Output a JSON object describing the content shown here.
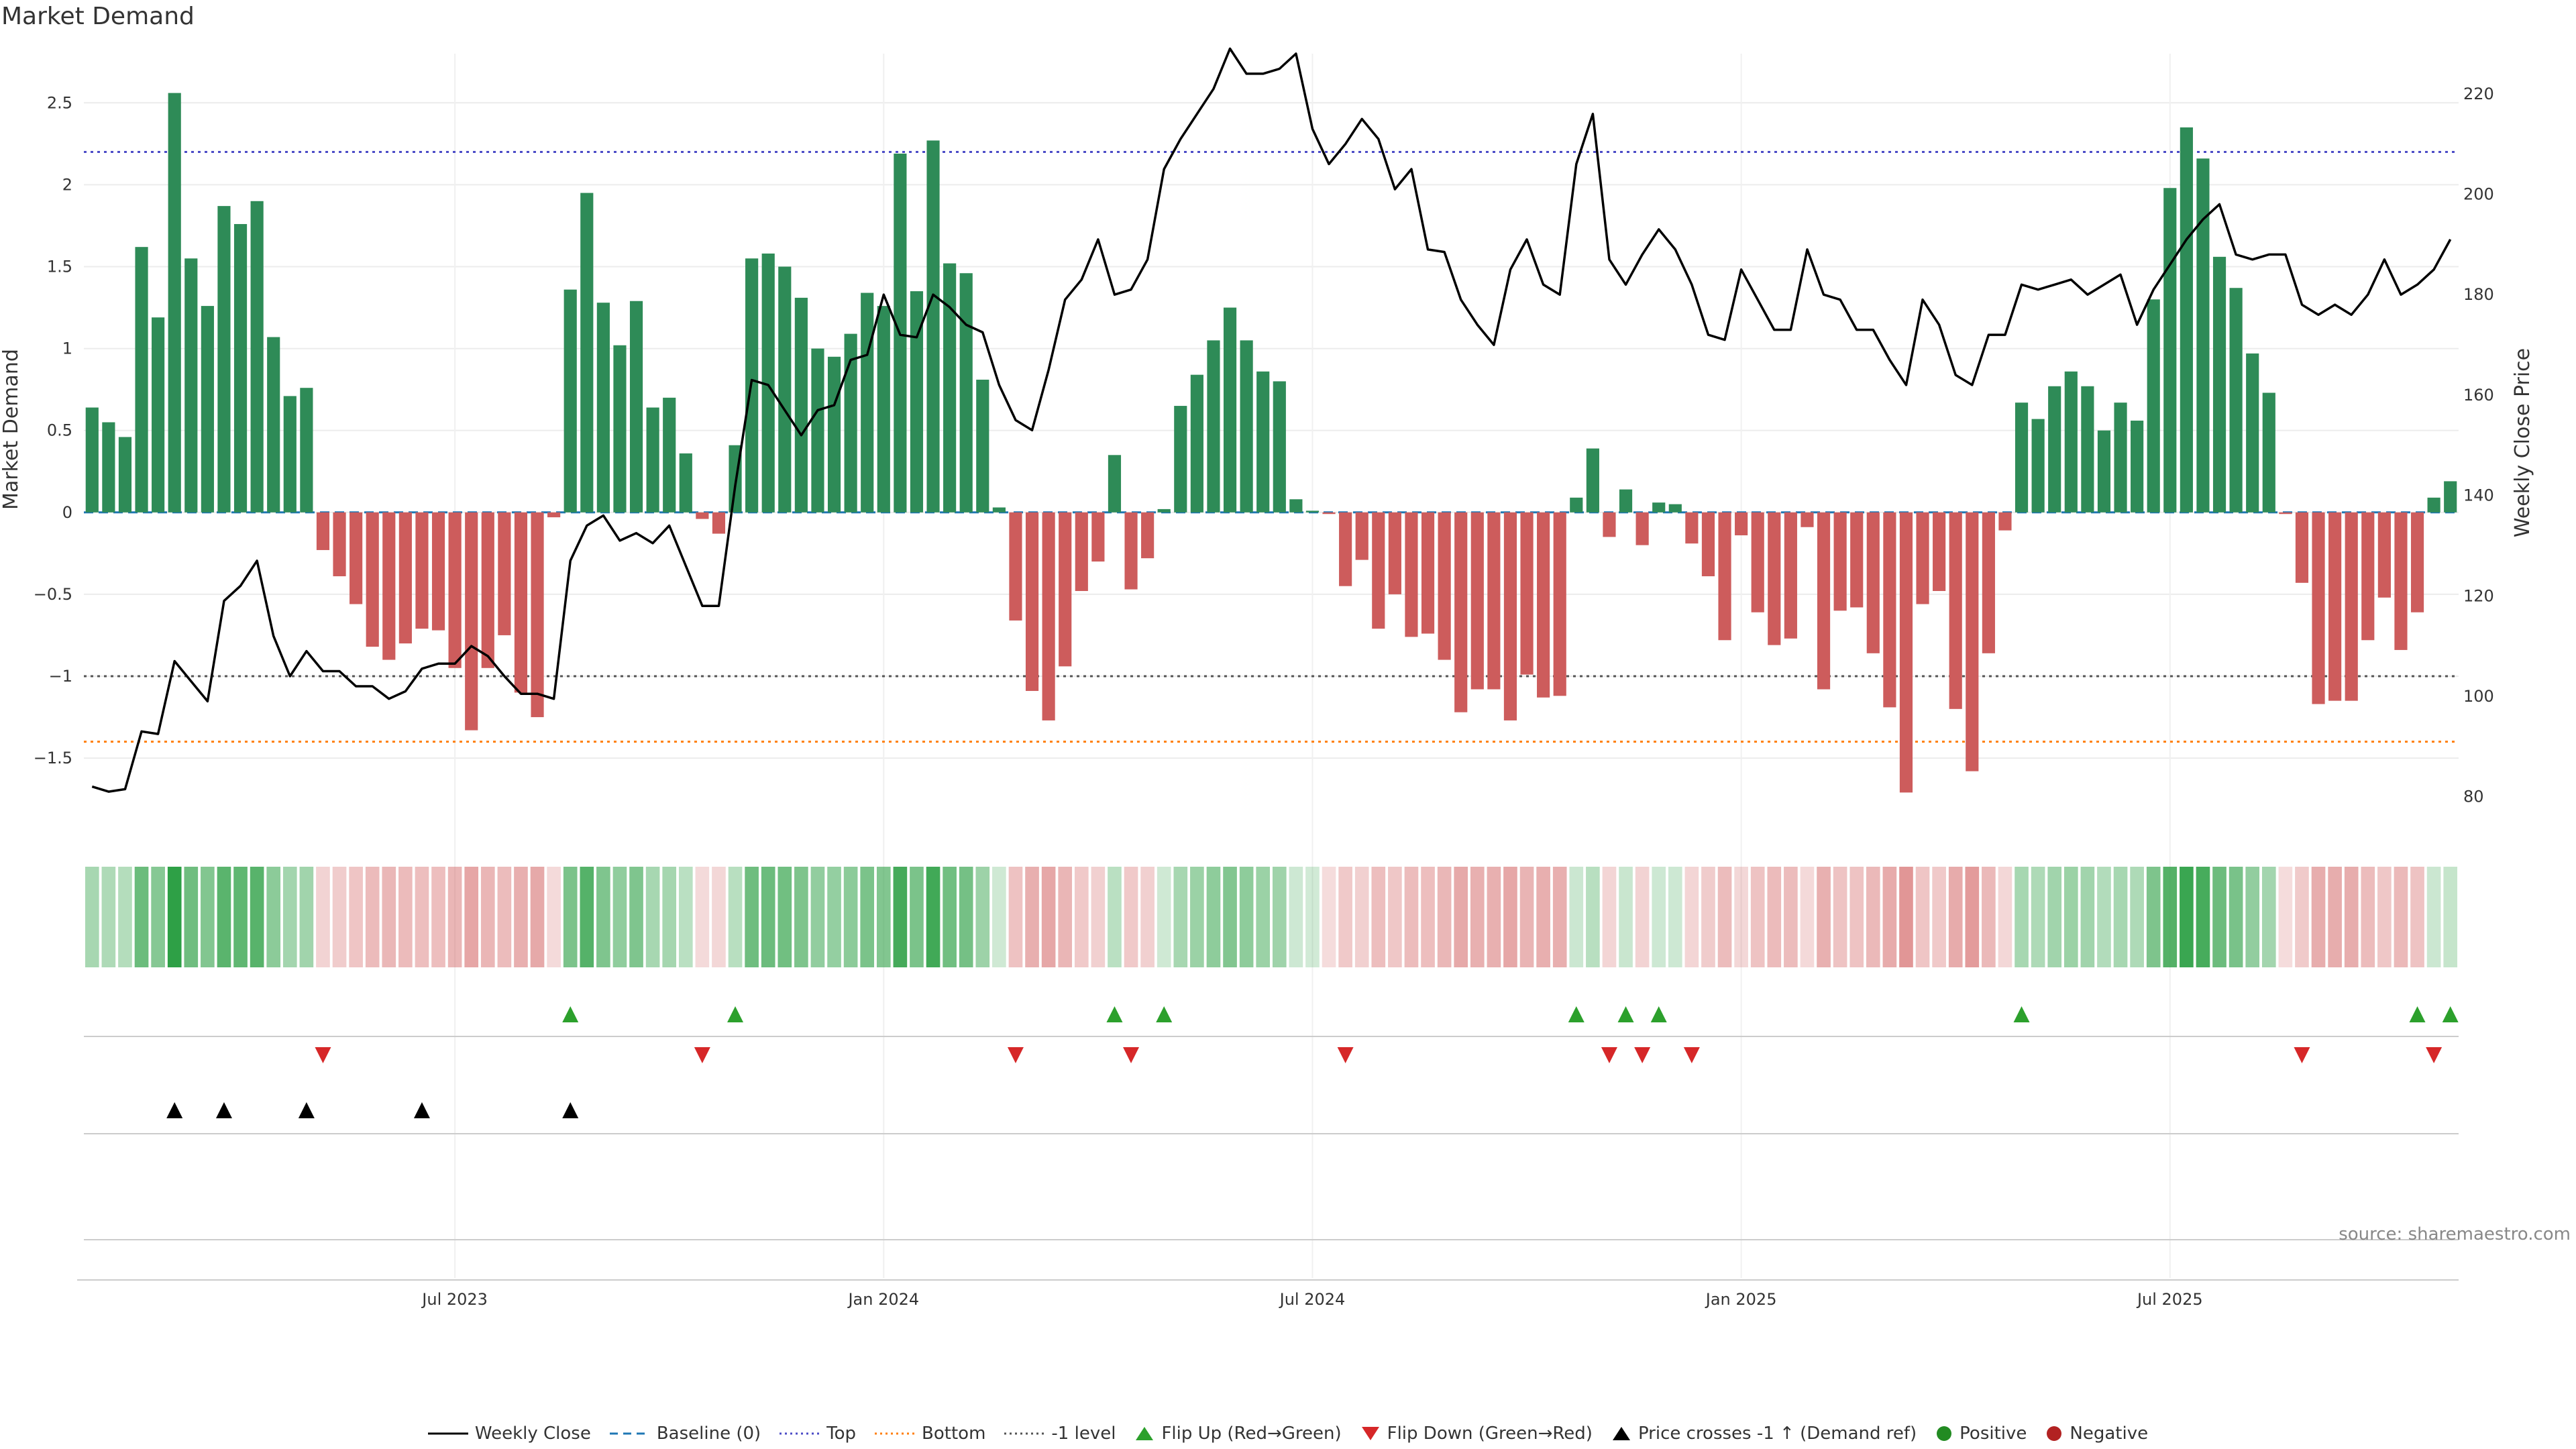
{
  "chart_data": {
    "type": "bar+line",
    "title": "Market Demand",
    "ylabel_left": "Market Demand",
    "ylabel_right": "Weekly Close Price",
    "left_ylim": [
      -1.95,
      2.8
    ],
    "right_ylim": [
      73,
      228
    ],
    "left_ticks": [
      "2.5",
      "2",
      "1.5",
      "1",
      "0.5",
      "0",
      "−0.5",
      "−1",
      "−1.5"
    ],
    "left_tick_values": [
      2.5,
      2,
      1.5,
      1,
      0.5,
      0,
      -0.5,
      -1,
      -1.5
    ],
    "right_ticks": [
      "220",
      "200",
      "180",
      "160",
      "140",
      "120",
      "100",
      "80"
    ],
    "right_tick_values": [
      220,
      200,
      180,
      160,
      140,
      120,
      100,
      80
    ],
    "x_ticks": [
      "Jul 2023",
      "Jan 2024",
      "Jul 2024",
      "Jan 2025",
      "Jul 2025"
    ],
    "x_tick_weeks": [
      22,
      48,
      74,
      100,
      126
    ],
    "levels": {
      "top": 2.2,
      "bottom": -1.4,
      "minus_one": -1.0,
      "baseline": 0
    },
    "demand": [
      0.64,
      0.55,
      0.46,
      1.62,
      1.19,
      2.56,
      1.55,
      1.26,
      1.87,
      1.76,
      1.9,
      1.07,
      0.71,
      0.76,
      -0.23,
      -0.39,
      -0.56,
      -0.82,
      -0.9,
      -0.8,
      -0.71,
      -0.72,
      -0.95,
      -1.33,
      -0.95,
      -0.75,
      -1.1,
      -1.25,
      -0.03,
      1.36,
      1.95,
      1.28,
      1.02,
      1.29,
      0.64,
      0.7,
      0.36,
      -0.04,
      -0.13,
      0.41,
      1.55,
      1.58,
      1.5,
      1.31,
      1.0,
      0.95,
      1.09,
      1.34,
      1.26,
      2.19,
      1.35,
      2.27,
      1.52,
      1.46,
      0.81,
      0.03,
      -0.66,
      -1.09,
      -1.27,
      -0.94,
      -0.48,
      -0.3,
      0.35,
      -0.47,
      -0.28,
      0.02,
      0.65,
      0.84,
      1.05,
      1.25,
      1.05,
      0.86,
      0.8,
      0.08,
      0.01,
      -0.01,
      -0.45,
      -0.29,
      -0.71,
      -0.5,
      -0.76,
      -0.74,
      -0.9,
      -1.22,
      -1.08,
      -1.08,
      -1.27,
      -0.99,
      -1.13,
      -1.12,
      0.09,
      0.39,
      -0.15,
      0.14,
      -0.2,
      0.06,
      0.05,
      -0.19,
      -0.39,
      -0.78,
      -0.14,
      -0.61,
      -0.81,
      -0.77,
      -0.09,
      -1.08,
      -0.6,
      -0.58,
      -0.86,
      -1.19,
      -1.71,
      -0.56,
      -0.48,
      -1.2,
      -1.58,
      -0.86,
      -0.11,
      0.67,
      0.57,
      0.77,
      0.86,
      0.77,
      0.5,
      0.67,
      0.56,
      1.3,
      1.98,
      2.35,
      2.16,
      1.56,
      1.37,
      0.97,
      0.73,
      -0.01,
      -0.43,
      -1.17,
      -1.15,
      -1.15,
      -0.78,
      -0.52,
      -0.84,
      -0.61,
      0.09,
      0.19
    ],
    "price": [
      82,
      81,
      81.5,
      93,
      92.5,
      107,
      103,
      99,
      119,
      122,
      127,
      112,
      104,
      109,
      105,
      105,
      102,
      102,
      99.5,
      101,
      105.5,
      106.5,
      106.5,
      110,
      108,
      104,
      100.5,
      100.5,
      99.5,
      127,
      134,
      136,
      131,
      132.5,
      130.5,
      134,
      126,
      118,
      118,
      142,
      163,
      162,
      157,
      152,
      157,
      158,
      167,
      168,
      180,
      172,
      171.5,
      180,
      177.5,
      174,
      172.5,
      162,
      155,
      153,
      165,
      179,
      183,
      191,
      180,
      181,
      187,
      205,
      211,
      216,
      221,
      229,
      224,
      224,
      225,
      228,
      213,
      206,
      210,
      215,
      211,
      201,
      205,
      189,
      188.5,
      179,
      174,
      170,
      185,
      191,
      182,
      180,
      206,
      216,
      187,
      182,
      188,
      193,
      189,
      182,
      172,
      171,
      185,
      179,
      173,
      173,
      189,
      180,
      179,
      173,
      173,
      167,
      162,
      179,
      174,
      164,
      162,
      172,
      172,
      182,
      181,
      182,
      183,
      180,
      182,
      184,
      174,
      181,
      186,
      191,
      195,
      198,
      188,
      187,
      188,
      188,
      178,
      176,
      178,
      176,
      180,
      187,
      180,
      182,
      185,
      191
    ]
  },
  "markers": {
    "flip_up_weeks": [
      29,
      39,
      62,
      65,
      90,
      93,
      95,
      117,
      141,
      143
    ],
    "flip_down_weeks": [
      14,
      37,
      56,
      63,
      76,
      92,
      94,
      97,
      134,
      142
    ],
    "price_cross_weeks": [
      5,
      8,
      13,
      20,
      29
    ]
  },
  "source_text": "source: sharemaestro.com",
  "legend": {
    "weekly_close": "Weekly Close",
    "baseline": "Baseline (0)",
    "top": "Top",
    "bottom": "Bottom",
    "minus_one": "-1 level",
    "flip_up": "Flip Up (Red→Green)",
    "flip_down": "Flip Down (Green→Red)",
    "price_cross": "Price crosses -1 ↑ (Demand ref)",
    "positive": "Positive",
    "negative": "Negative"
  },
  "colors": {
    "positive_bar": "#2e8b57",
    "negative_bar": "#cd5c5c",
    "price_line": "#000000",
    "baseline": "#1f77b4",
    "top": "#4c4cc7",
    "bottom": "#ff7f0e",
    "minus_one": "#555555",
    "flip_up": "#2ca02c",
    "flip_down": "#d62728",
    "price_cross": "#000000",
    "positive_dot": "#228b22",
    "negative_dot": "#b22222"
  }
}
